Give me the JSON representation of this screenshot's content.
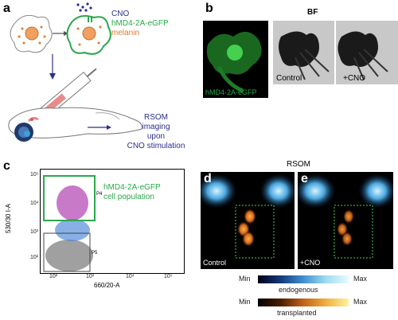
{
  "panels": {
    "a": {
      "letter": "a",
      "legend": {
        "cno": "CNO",
        "hmd4": "hMD4-2A-eGFP",
        "melanin": "melanin"
      },
      "rsom_text": [
        "RSOM",
        "imaging",
        "upon",
        "CNO stimulation"
      ],
      "colors": {
        "navy": "#2a2f8c",
        "green": "#2aa84a",
        "orange": "#e07a2a"
      }
    },
    "b": {
      "letter": "b",
      "title": "BF",
      "fluor_label": "hMD4-2A-eGFP",
      "control_label": "Control",
      "cno_label": "+CNO"
    },
    "c": {
      "letter": "c",
      "gate_label": [
        "hMD4-2A-eGFP",
        "cell population"
      ],
      "y_axis_label": "530/30 I-A",
      "x_axis_label": "660/20-A",
      "gate_p4": "P4",
      "gate_p5": "P5",
      "y_ticks": [
        "10⁵",
        "10⁴",
        "10³",
        "10²"
      ],
      "x_ticks": [
        "10²",
        "10³",
        "10⁴",
        "10⁵"
      ]
    },
    "rsom": {
      "title": "RSOM",
      "d": {
        "letter": "d",
        "label": "Control"
      },
      "e": {
        "letter": "e",
        "label": "+CNO"
      },
      "colorbar_endogenous": {
        "min": "Min",
        "max": "Max",
        "label": "endogenous"
      },
      "colorbar_transplanted": {
        "min": "Min",
        "max": "Max",
        "label": "transplanted"
      }
    }
  }
}
